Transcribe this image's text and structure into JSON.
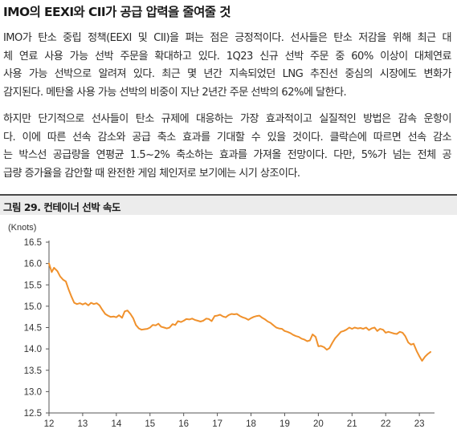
{
  "heading": "IMO의 EEXI와 CII가 공급 압력을 줄여줄 것",
  "paragraph1": [
    "IMO가 탄소 중립 정책(EEXI 및 CII)을 펴는 점은 긍정적이다. 선사들은 탄소 저감을 위해 최근 대",
    "체 연료 사용 가능 선박 주문을 확대하고 있다. 1Q23 신규 선박 주문 중 60% 이상이 대체연료",
    "사용 가능 선박으로 알려져 있다. 최근 몇 년간 지속되었던 LNG 추진선 중심의 시장에도 변화가",
    "감지된다. 메탄올 사용 가능 선박의 비중이 지난 2년간 주문 선박의 62%에 달한다."
  ],
  "paragraph2": [
    "하지만 단기적으로 선사들이 탄소 규제에 대응하는 가장 효과적이고 실질적인 방법은 감속 운항이",
    "다. 이에 따른 선속 감소와 공급 축소 효과를 기대할 수 있을 것이다. 클락슨에 따르면 선속 감소",
    "는 박스선 공급량을 연평균 1.5~2% 축소하는 효과를 가져올 전망이다. 다만, 5%가 넘는 전체 공",
    "급량 증가율을 감안할 때 완전한 게임 체인저로 보기에는 시기 상조이다."
  ],
  "figure_title": "그림 29. 컨테이너 선박 속도",
  "chart_data": {
    "type": "line",
    "title": "",
    "unit_label": "(Knots)",
    "xlabel": "",
    "ylabel": "",
    "x_ticks": [
      "12",
      "13",
      "14",
      "15",
      "16",
      "17",
      "18",
      "19",
      "20",
      "21",
      "22",
      "23"
    ],
    "y_ticks": [
      "16.5",
      "16.0",
      "15.5",
      "15.0",
      "14.5",
      "14.0",
      "13.5",
      "13.0",
      "12.5"
    ],
    "xlim": [
      2012.0,
      2023.45
    ],
    "ylim": [
      12.5,
      16.5
    ],
    "grid": false,
    "line_color": "#f0912c",
    "series": [
      {
        "x": [
          2012.0,
          2012.08,
          2012.15,
          2012.25,
          2012.33,
          2012.42,
          2012.5,
          2012.58,
          2012.67,
          2012.75,
          2012.83,
          2012.92,
          2013.0,
          2013.08,
          2013.17,
          2013.25,
          2013.33,
          2013.42,
          2013.5,
          2013.58,
          2013.67,
          2013.75,
          2013.83,
          2013.92,
          2014.0,
          2014.08,
          2014.17,
          2014.25,
          2014.33,
          2014.42,
          2014.5,
          2014.58,
          2014.67,
          2014.75,
          2014.83,
          2014.92,
          2015.0,
          2015.08,
          2015.17,
          2015.25,
          2015.33,
          2015.42,
          2015.5,
          2015.58,
          2015.67,
          2015.75,
          2015.83,
          2015.92,
          2016.0,
          2016.08,
          2016.17,
          2016.25,
          2016.33,
          2016.42,
          2016.5,
          2016.58,
          2016.67,
          2016.75,
          2016.83,
          2016.92,
          2017.0,
          2017.08,
          2017.17,
          2017.25,
          2017.33,
          2017.42,
          2017.5,
          2017.58,
          2017.67,
          2017.75,
          2017.83,
          2017.92,
          2018.0,
          2018.08,
          2018.17,
          2018.25,
          2018.33,
          2018.42,
          2018.5,
          2018.58,
          2018.67,
          2018.75,
          2018.83,
          2018.92,
          2019.0,
          2019.08,
          2019.17,
          2019.25,
          2019.33,
          2019.42,
          2019.5,
          2019.58,
          2019.67,
          2019.75,
          2019.83,
          2019.92,
          2020.0,
          2020.08,
          2020.17,
          2020.25,
          2020.33,
          2020.42,
          2020.5,
          2020.58,
          2020.67,
          2020.75,
          2020.83,
          2020.92,
          2021.0,
          2021.08,
          2021.17,
          2021.25,
          2021.33,
          2021.42,
          2021.5,
          2021.58,
          2021.67,
          2021.75,
          2021.83,
          2021.92,
          2022.0,
          2022.08,
          2022.17,
          2022.25,
          2022.33,
          2022.42,
          2022.5,
          2022.58,
          2022.67,
          2022.75,
          2022.83,
          2022.92,
          2023.0,
          2023.08,
          2023.17,
          2023.25,
          2023.33
        ],
        "y": [
          16.0,
          15.8,
          15.9,
          15.82,
          15.7,
          15.62,
          15.58,
          15.4,
          15.22,
          15.08,
          15.05,
          15.07,
          15.04,
          15.07,
          15.02,
          15.08,
          15.05,
          15.07,
          15.02,
          14.92,
          14.82,
          14.78,
          14.75,
          14.76,
          14.74,
          14.79,
          14.73,
          14.88,
          14.9,
          14.82,
          14.72,
          14.56,
          14.48,
          14.45,
          14.46,
          14.47,
          14.5,
          14.56,
          14.55,
          14.59,
          14.52,
          14.5,
          14.48,
          14.5,
          14.58,
          14.56,
          14.65,
          14.63,
          14.66,
          14.7,
          14.69,
          14.71,
          14.68,
          14.66,
          14.64,
          14.66,
          14.71,
          14.7,
          14.65,
          14.77,
          14.78,
          14.8,
          14.76,
          14.74,
          14.79,
          14.82,
          14.81,
          14.82,
          14.77,
          14.74,
          14.72,
          14.68,
          14.72,
          14.75,
          14.77,
          14.78,
          14.73,
          14.69,
          14.64,
          14.61,
          14.55,
          14.5,
          14.48,
          14.47,
          14.42,
          14.4,
          14.37,
          14.33,
          14.3,
          14.28,
          14.24,
          14.22,
          14.18,
          14.2,
          14.34,
          14.28,
          14.06,
          14.07,
          14.04,
          13.98,
          14.02,
          14.15,
          14.25,
          14.32,
          14.4,
          14.42,
          14.45,
          14.5,
          14.47,
          14.5,
          14.48,
          14.49,
          14.47,
          14.5,
          14.44,
          14.48,
          14.5,
          14.42,
          14.47,
          14.45,
          14.38,
          14.4,
          14.38,
          14.36,
          14.35,
          14.4,
          14.38,
          14.3,
          14.15,
          14.1,
          14.12,
          13.95,
          13.83,
          13.72,
          13.82,
          13.88,
          13.93
        ]
      }
    ]
  }
}
